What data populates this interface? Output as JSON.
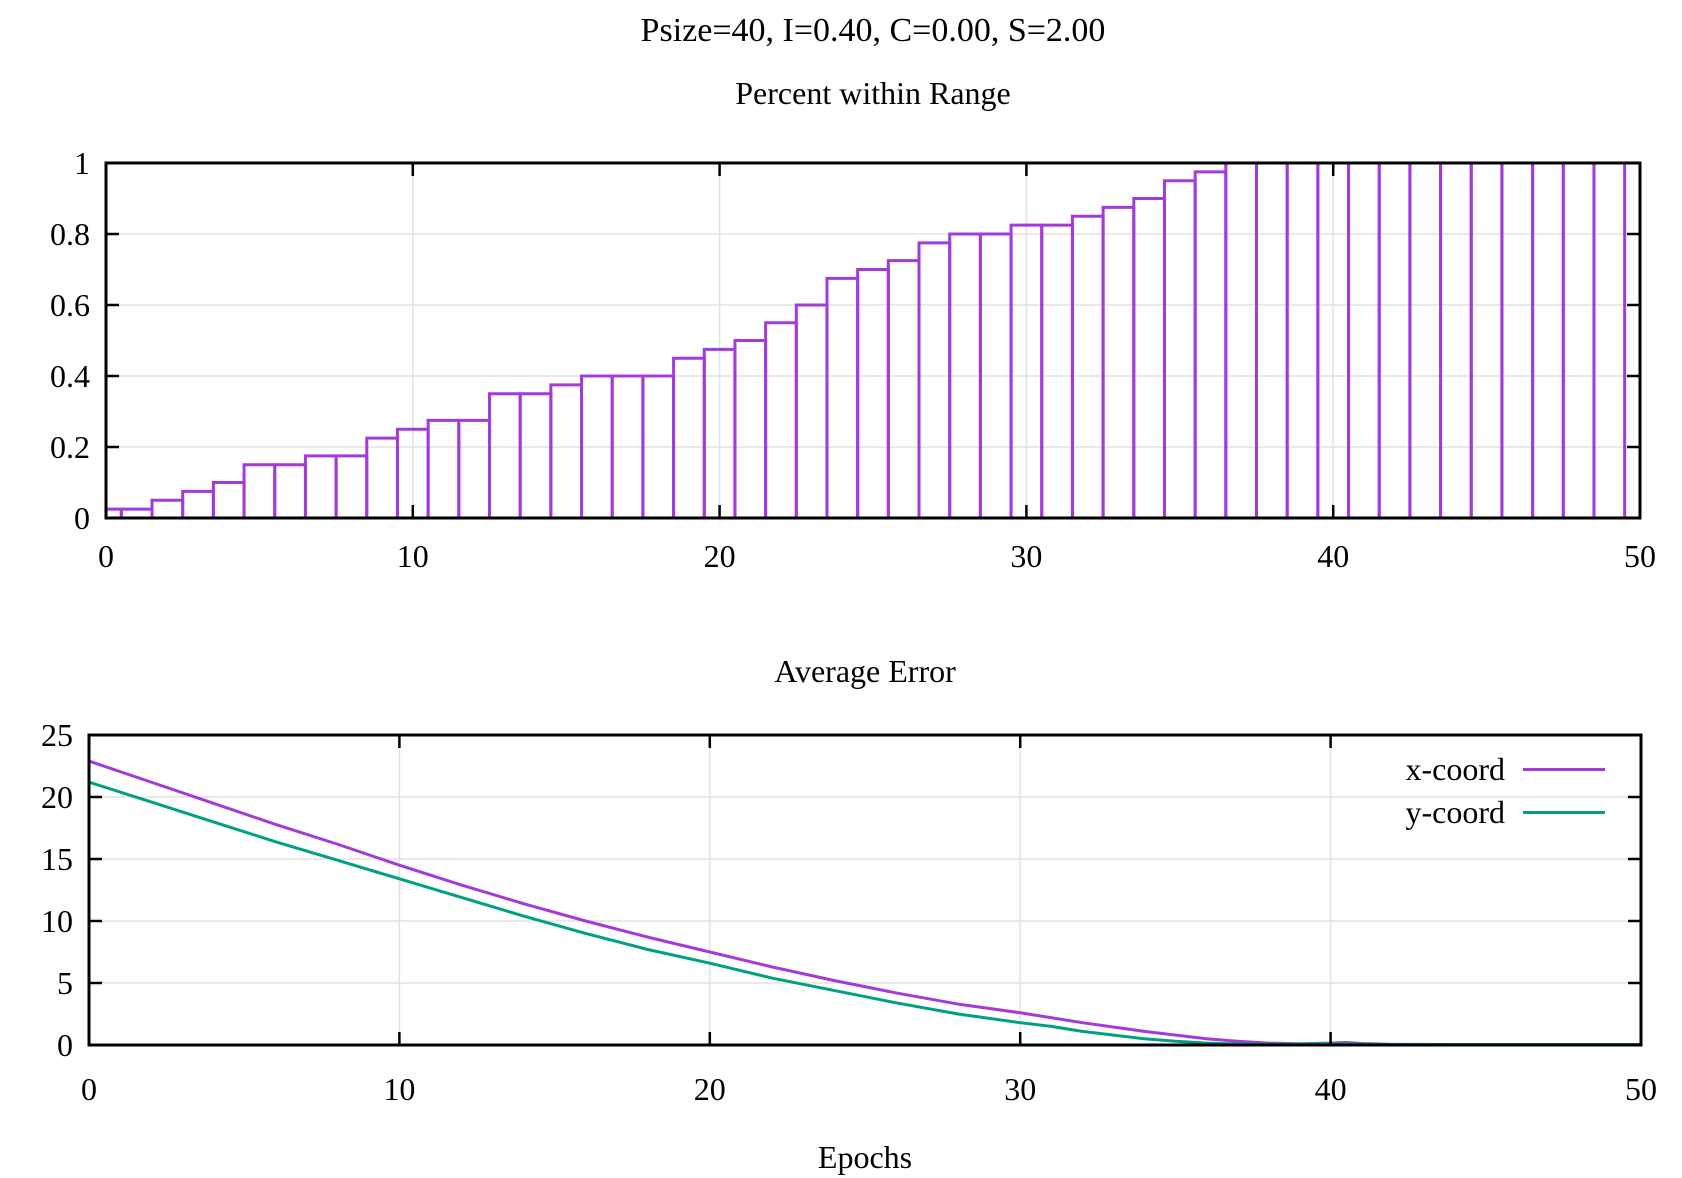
{
  "title": "Psize=40, I=0.40, C=0.00, S=2.00",
  "colors": {
    "purple": "#a33bdb",
    "teal": "#00a183",
    "grid": "#e2e2e2",
    "axis": "#000000"
  },
  "chart_data": [
    {
      "type": "bar",
      "title": "Percent within Range",
      "xlabel": "",
      "ylabel": "",
      "bin_start": 0,
      "bin_step": 1,
      "bin_width": 1,
      "values": [
        0.025,
        0.025,
        0.05,
        0.075,
        0.1,
        0.15,
        0.15,
        0.175,
        0.175,
        0.225,
        0.25,
        0.275,
        0.275,
        0.35,
        0.35,
        0.375,
        0.4,
        0.4,
        0.4,
        0.45,
        0.475,
        0.5,
        0.55,
        0.6,
        0.675,
        0.7,
        0.725,
        0.775,
        0.8,
        0.8,
        0.825,
        0.825,
        0.85,
        0.875,
        0.9,
        0.95,
        0.975,
        1,
        1,
        1,
        1,
        1,
        1,
        1,
        1,
        1,
        1,
        1,
        1,
        1
      ],
      "xlim": [
        0,
        50
      ],
      "ylim": [
        0,
        1
      ],
      "xticks": [
        0,
        10,
        20,
        30,
        40,
        50
      ],
      "yticks": [
        0,
        0.2,
        0.4,
        0.6,
        0.8,
        1
      ],
      "ytick_labels": [
        "0",
        "0.2",
        "0.4",
        "0.6",
        "0.8",
        "1"
      ],
      "color": "#a33bdb",
      "grid": true,
      "legend": null
    },
    {
      "type": "line",
      "title": "Average Error",
      "xlabel": "Epochs",
      "ylabel": "",
      "xlim": [
        0,
        50
      ],
      "ylim": [
        0,
        25
      ],
      "xticks": [
        0,
        10,
        20,
        30,
        40,
        50
      ],
      "yticks": [
        0,
        5,
        10,
        15,
        20,
        25
      ],
      "grid": true,
      "legend_position": "top-right",
      "series": [
        {
          "name": "x-coord",
          "color": "#a33bdb",
          "points": [
            [
              0,
              22.9
            ],
            [
              2,
              21.2
            ],
            [
              4,
              19.5
            ],
            [
              6,
              17.8
            ],
            [
              8,
              16.2
            ],
            [
              10,
              14.5
            ],
            [
              12,
              12.9
            ],
            [
              14,
              11.4
            ],
            [
              16,
              10.0
            ],
            [
              18,
              8.7
            ],
            [
              20,
              7.5
            ],
            [
              22,
              6.3
            ],
            [
              24,
              5.2
            ],
            [
              26,
              4.2
            ],
            [
              28,
              3.3
            ],
            [
              30,
              2.6
            ],
            [
              32,
              1.8
            ],
            [
              34,
              1.1
            ],
            [
              36,
              0.5
            ],
            [
              37,
              0.3
            ],
            [
              38,
              0.15
            ],
            [
              39,
              0.1
            ],
            [
              40,
              0.15
            ],
            [
              40.5,
              0.2
            ],
            [
              41,
              0.12
            ],
            [
              42,
              0.05
            ],
            [
              44,
              0.04
            ],
            [
              46,
              0.04
            ],
            [
              48,
              0.04
            ],
            [
              50,
              0.04
            ]
          ]
        },
        {
          "name": "y-coord",
          "color": "#00a183",
          "points": [
            [
              0,
              21.2
            ],
            [
              2,
              19.6
            ],
            [
              4,
              18.0
            ],
            [
              6,
              16.4
            ],
            [
              8,
              14.9
            ],
            [
              10,
              13.4
            ],
            [
              12,
              11.9
            ],
            [
              14,
              10.4
            ],
            [
              16,
              9.0
            ],
            [
              18,
              7.7
            ],
            [
              20,
              6.6
            ],
            [
              22,
              5.4
            ],
            [
              24,
              4.4
            ],
            [
              26,
              3.4
            ],
            [
              28,
              2.5
            ],
            [
              30,
              1.8
            ],
            [
              31,
              1.5
            ],
            [
              32,
              1.1
            ],
            [
              34,
              0.5
            ],
            [
              35,
              0.3
            ],
            [
              36,
              0.15
            ],
            [
              37,
              0.08
            ],
            [
              38,
              0.05
            ],
            [
              40,
              0.1
            ],
            [
              41,
              0.06
            ],
            [
              42,
              0.03
            ],
            [
              44,
              0.03
            ],
            [
              46,
              0.03
            ],
            [
              48,
              0.03
            ],
            [
              50,
              0.03
            ]
          ]
        }
      ]
    }
  ]
}
